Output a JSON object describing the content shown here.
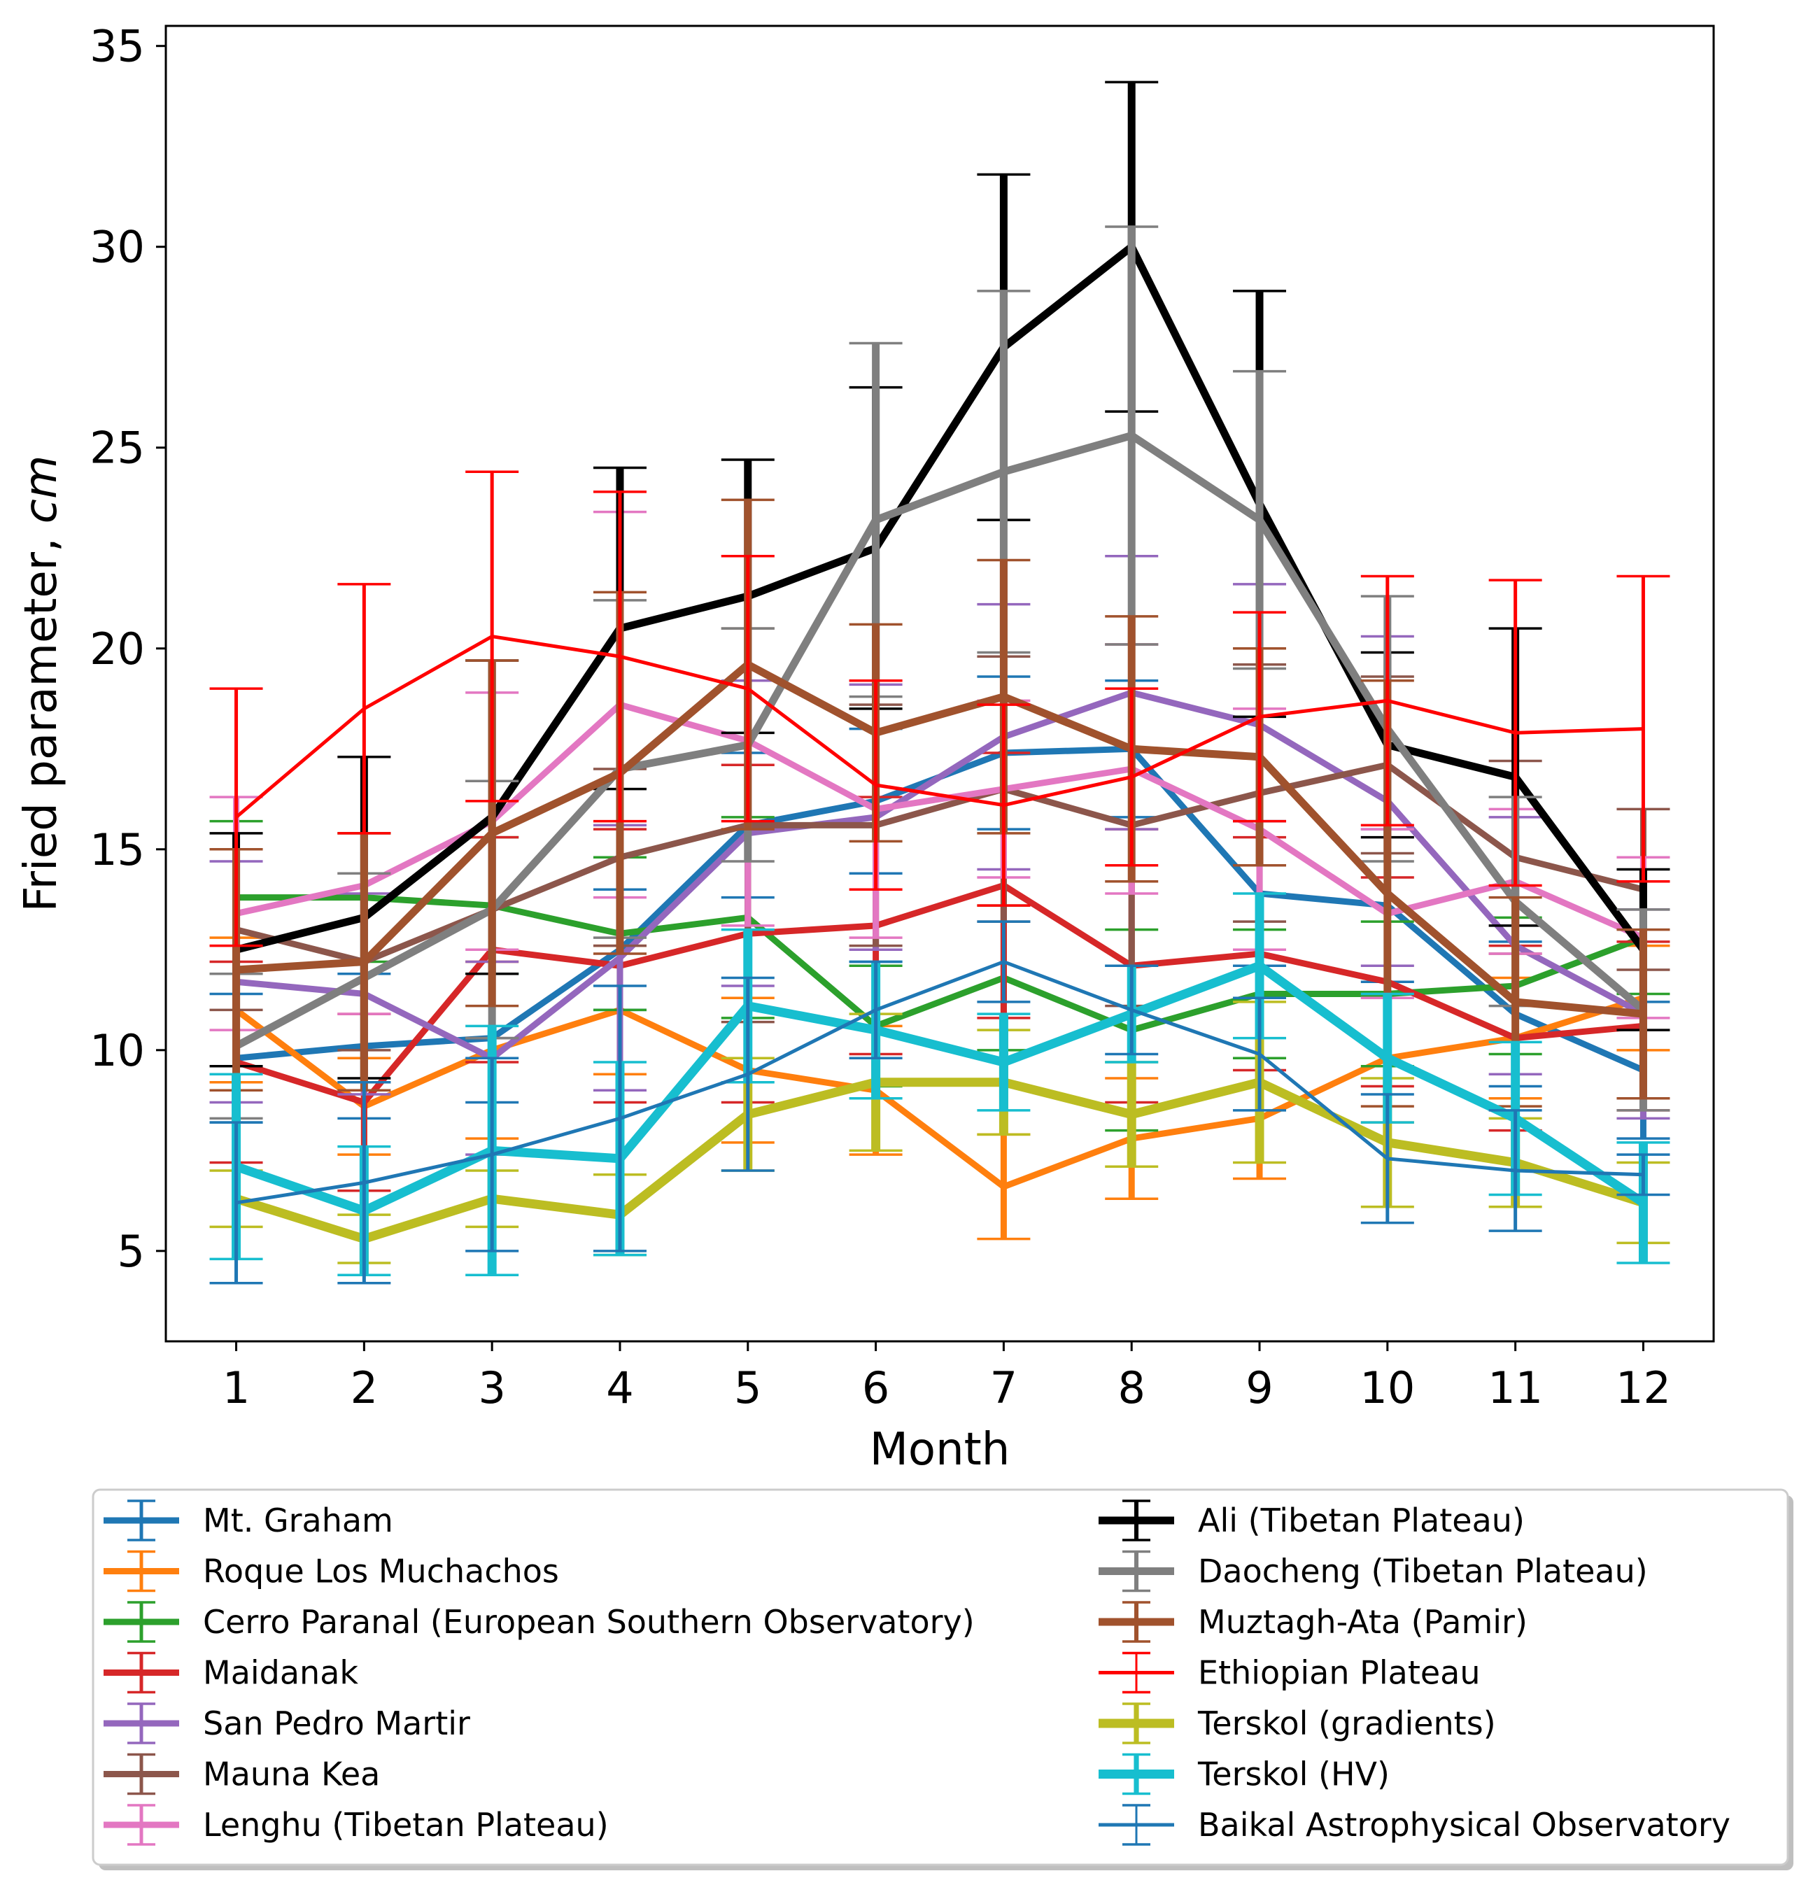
{
  "chart_data": {
    "type": "line",
    "title": "",
    "xlabel": "Month",
    "ylabel": "Fried parameter, ",
    "ylabel_unit": "cm",
    "x": [
      1,
      2,
      3,
      4,
      5,
      6,
      7,
      8,
      9,
      10,
      11,
      12
    ],
    "xlim": [
      0.45,
      12.55
    ],
    "ylim": [
      2.75,
      35.5
    ],
    "xticks": [
      "1",
      "2",
      "3",
      "4",
      "5",
      "6",
      "7",
      "8",
      "9",
      "10",
      "11",
      "12"
    ],
    "yticks": [
      "5",
      "10",
      "15",
      "20",
      "25",
      "30",
      "35"
    ],
    "grid": false,
    "legend_position": "below",
    "series": [
      {
        "name": "Mt. Graham",
        "color": "#1f77b4",
        "width": 9,
        "values": [
          9.8,
          10.1,
          10.3,
          12.5,
          15.6,
          16.2,
          17.4,
          17.5,
          13.9,
          13.6,
          10.9,
          9.5
        ],
        "errors": [
          1.6,
          1.8,
          1.6,
          1.5,
          1.8,
          1.8,
          1.9,
          1.7,
          1.8,
          1.9,
          1.8,
          1.7
        ]
      },
      {
        "name": "Roque Los Muchachos",
        "color": "#ff7f0e",
        "width": 9,
        "values": [
          11.0,
          8.6,
          10.0,
          11.0,
          9.5,
          9.0,
          6.6,
          7.8,
          8.3,
          9.8,
          10.3,
          11.3
        ],
        "errors": [
          1.8,
          1.2,
          2.2,
          1.6,
          1.8,
          1.6,
          1.3,
          1.5,
          1.5,
          1.6,
          1.5,
          1.3
        ]
      },
      {
        "name": "Cerro Paranal (European Southern Observatory)",
        "color": "#2ca02c",
        "width": 9,
        "values": [
          13.8,
          13.8,
          13.6,
          12.9,
          13.3,
          10.6,
          11.8,
          10.5,
          11.4,
          11.4,
          11.6,
          12.8
        ],
        "errors": [
          1.9,
          1.6,
          1.7,
          1.9,
          2.5,
          1.5,
          1.8,
          2.5,
          1.6,
          1.8,
          1.7,
          1.4
        ]
      },
      {
        "name": "Maidanak",
        "color": "#d62728",
        "width": 9,
        "values": [
          9.7,
          8.7,
          12.5,
          12.1,
          12.9,
          13.1,
          14.1,
          12.1,
          12.4,
          11.7,
          10.3,
          10.6
        ],
        "errors": [
          2.5,
          2.2,
          2.8,
          3.4,
          4.2,
          3.2,
          3.3,
          3.4,
          2.9,
          2.6,
          2.3,
          2.1
        ]
      },
      {
        "name": "San Pedro Martir",
        "color": "#9467bd",
        "width": 9,
        "values": [
          11.7,
          11.4,
          9.8,
          12.3,
          15.4,
          15.8,
          17.8,
          18.9,
          18.1,
          16.2,
          12.6,
          10.9
        ],
        "errors": [
          3.0,
          2.5,
          2.4,
          3.3,
          3.8,
          3.3,
          3.3,
          3.4,
          3.5,
          4.1,
          3.2,
          2.6
        ]
      },
      {
        "name": "Mauna Kea",
        "color": "#8c564b",
        "width": 9,
        "values": [
          13.0,
          12.2,
          13.5,
          14.8,
          15.6,
          15.6,
          16.5,
          15.6,
          16.4,
          17.1,
          14.8,
          14.0
        ],
        "errors": [
          2.0,
          2.2,
          3.2,
          2.2,
          4.9,
          3.0,
          3.3,
          4.5,
          3.2,
          2.2,
          2.4,
          2.0
        ]
      },
      {
        "name": "Lenghu (Tibetan Plateau)",
        "color": "#e377c2",
        "width": 9,
        "values": [
          13.4,
          14.1,
          15.7,
          18.6,
          17.7,
          16.0,
          16.5,
          17.0,
          15.5,
          13.4,
          14.2,
          12.8
        ],
        "errors": [
          2.9,
          3.2,
          3.2,
          4.8,
          4.6,
          3.2,
          2.2,
          3.1,
          3.0,
          2.1,
          1.8,
          2.0
        ]
      },
      {
        "name": "Ali (Tibetan Plateau)",
        "color": "#000000",
        "width": 11,
        "values": [
          12.5,
          13.3,
          15.8,
          20.5,
          21.3,
          22.5,
          27.5,
          30.0,
          23.6,
          17.6,
          16.8,
          12.5
        ],
        "errors": [
          2.9,
          4.0,
          3.9,
          4.0,
          3.4,
          4.0,
          4.3,
          4.1,
          5.3,
          2.3,
          3.7,
          2.0
        ]
      },
      {
        "name": "Daocheng (Tibetan Plateau)",
        "color": "#7f7f7f",
        "width": 11,
        "values": [
          10.1,
          11.8,
          13.5,
          17.0,
          17.6,
          23.2,
          24.4,
          25.3,
          23.2,
          18.0,
          13.7,
          11.0
        ],
        "errors": [
          1.8,
          2.6,
          3.2,
          4.2,
          2.9,
          4.4,
          4.5,
          5.2,
          3.7,
          3.3,
          2.6,
          2.5
        ]
      },
      {
        "name": "Muztagh-Ata (Pamir)",
        "color": "#a0522d",
        "width": 11,
        "values": [
          12.0,
          12.2,
          15.4,
          16.9,
          19.6,
          17.9,
          18.8,
          17.5,
          17.3,
          13.9,
          11.2,
          10.9
        ],
        "errors": [
          3.0,
          3.2,
          4.3,
          4.5,
          4.1,
          2.7,
          3.4,
          3.3,
          2.7,
          5.3,
          2.6,
          2.1
        ]
      },
      {
        "name": "Ethiopian Plateau",
        "color": "#ff0000",
        "width": 5,
        "values": [
          15.8,
          18.5,
          20.3,
          19.8,
          19.0,
          16.6,
          16.1,
          16.8,
          18.3,
          18.7,
          17.9,
          18.0
        ],
        "errors": [
          3.2,
          3.1,
          4.1,
          4.1,
          3.3,
          2.6,
          2.5,
          2.2,
          2.6,
          3.1,
          3.8,
          3.8
        ]
      },
      {
        "name": "Terskol (gradients)",
        "color": "#bcbd22",
        "width": 13,
        "values": [
          6.3,
          5.3,
          6.3,
          5.9,
          8.4,
          9.2,
          9.2,
          8.4,
          9.2,
          7.7,
          7.2,
          6.2
        ],
        "errors": [
          0.7,
          0.6,
          0.7,
          1.0,
          1.4,
          1.7,
          1.3,
          1.3,
          2.0,
          1.6,
          1.1,
          1.0
        ]
      },
      {
        "name": "Terskol (HV)",
        "color": "#17becf",
        "width": 13,
        "values": [
          7.1,
          6.0,
          7.5,
          7.3,
          11.1,
          10.5,
          9.7,
          10.9,
          12.1,
          9.8,
          8.3,
          6.2
        ],
        "errors": [
          2.3,
          1.6,
          3.1,
          2.4,
          1.9,
          1.7,
          1.2,
          1.2,
          1.8,
          1.6,
          1.9,
          1.5
        ]
      },
      {
        "name": "Baikal Astrophysical Observatory",
        "color": "#1f77b4",
        "width": 5,
        "values": [
          6.2,
          6.7,
          7.4,
          8.3,
          9.4,
          11.0,
          12.2,
          11.0,
          9.9,
          7.3,
          7.0,
          6.9
        ],
        "errors": [
          2.0,
          2.5,
          2.4,
          3.3,
          2.4,
          1.2,
          1.0,
          1.1,
          1.4,
          1.6,
          1.5,
          0.5
        ]
      }
    ]
  }
}
